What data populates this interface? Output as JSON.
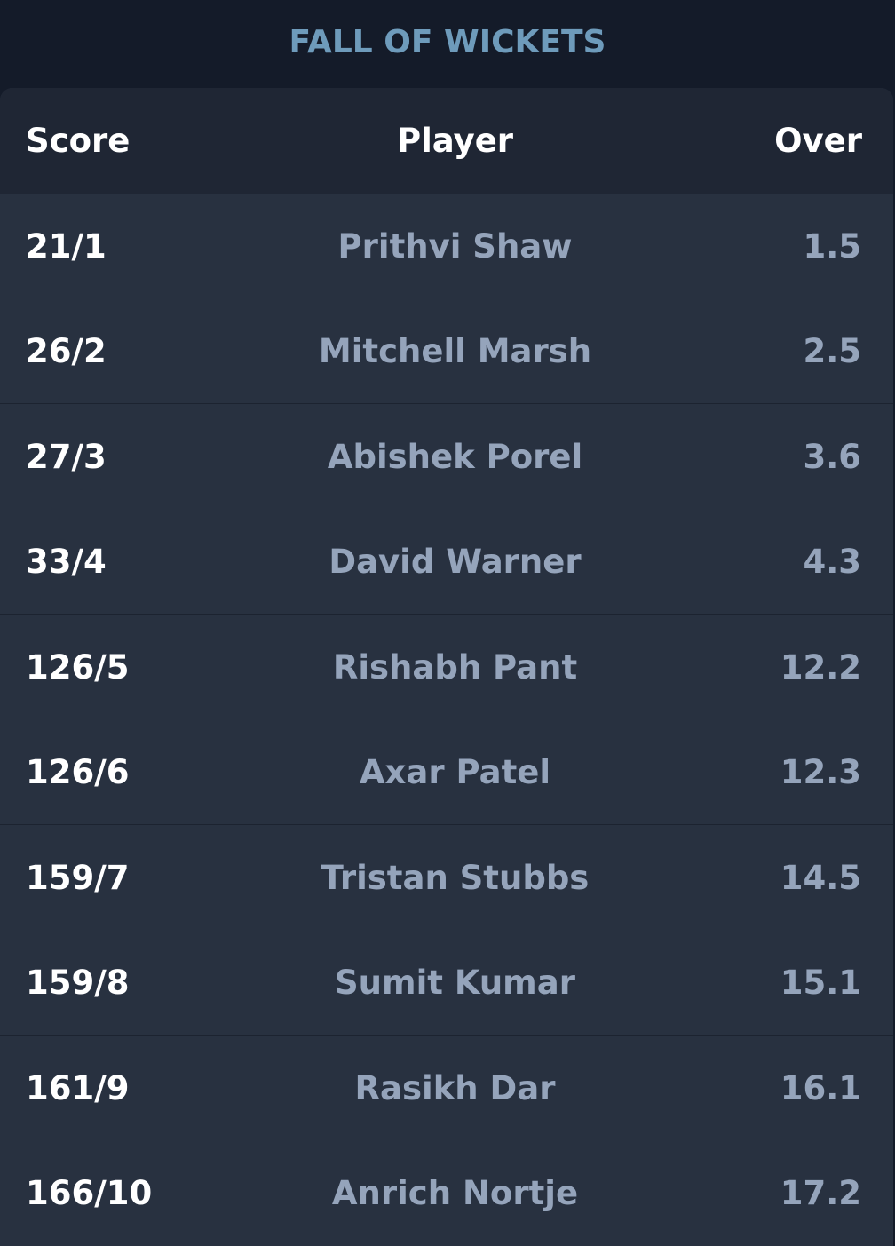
{
  "title": "FALL OF WICKETS",
  "table": {
    "headers": {
      "score": "Score",
      "player": "Player",
      "over": "Over"
    },
    "rows": [
      {
        "score": "21/1",
        "player": "Prithvi Shaw",
        "over": "1.5"
      },
      {
        "score": "26/2",
        "player": "Mitchell Marsh",
        "over": "2.5"
      },
      {
        "score": "27/3",
        "player": "Abishek Porel",
        "over": "3.6"
      },
      {
        "score": "33/4",
        "player": "David Warner",
        "over": "4.3"
      },
      {
        "score": "126/5",
        "player": "Rishabh Pant",
        "over": "12.2"
      },
      {
        "score": "126/6",
        "player": "Axar Patel",
        "over": "12.3"
      },
      {
        "score": "159/7",
        "player": "Tristan Stubbs",
        "over": "14.5"
      },
      {
        "score": "159/8",
        "player": "Sumit Kumar",
        "over": "15.1"
      },
      {
        "score": "161/9",
        "player": "Rasikh Dar",
        "over": "16.1"
      },
      {
        "score": "166/10",
        "player": "Anrich Nortje",
        "over": "17.2"
      }
    ]
  },
  "colors": {
    "background": "#141b29",
    "card": "#283140",
    "header_row": "#1f2634",
    "title": "#6e9bbb",
    "primary_text": "#ffffff",
    "secondary_text": "#95a4bb"
  }
}
